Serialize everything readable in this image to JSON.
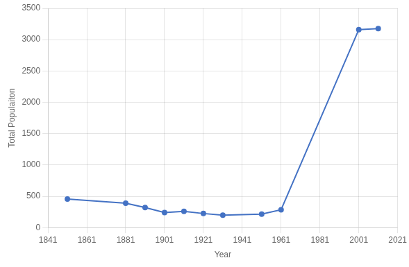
{
  "chart_data": {
    "type": "line",
    "x": [
      1851,
      1881,
      1891,
      1901,
      1911,
      1921,
      1931,
      1951,
      1961,
      2001,
      2011
    ],
    "values": [
      455,
      390,
      320,
      240,
      260,
      225,
      200,
      215,
      285,
      3160,
      3175
    ],
    "color": "#4472C4",
    "marker": "circle",
    "xlabel": "Year",
    "ylabel": "Total Populaiton",
    "xlim": [
      1841,
      2021
    ],
    "ylim": [
      0,
      3500
    ],
    "xticks": [
      1841,
      1861,
      1881,
      1901,
      1921,
      1941,
      1961,
      1981,
      2001,
      2021
    ],
    "yticks": [
      0,
      500,
      1000,
      1500,
      2000,
      2500,
      3000,
      3500
    ],
    "grid": true
  }
}
